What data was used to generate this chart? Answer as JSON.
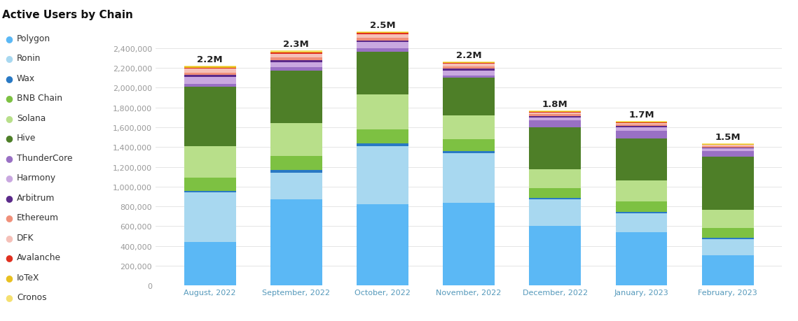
{
  "title": "Active Users by Chain",
  "months": [
    "August, 2022",
    "September, 2022",
    "October, 2022",
    "November, 2022",
    "December, 2022",
    "January, 2023",
    "February, 2023"
  ],
  "totals_labels": [
    "2.2M",
    "2.3M",
    "2.5M",
    "2.2M",
    "1.8M",
    "1.7M",
    "1.5M"
  ],
  "chains": [
    "Polygon",
    "Ronin",
    "Wax",
    "BNB Chain",
    "Solana",
    "Hive",
    "ThunderCore",
    "Harmony",
    "Arbitrum",
    "Ethereum",
    "DFK",
    "Avalanche",
    "IoTeX",
    "Cronos"
  ],
  "colors": {
    "Polygon": "#5BB8F5",
    "Ronin": "#A8D8F0",
    "Wax": "#2979C4",
    "BNB Chain": "#7DC142",
    "Solana": "#B8DF8A",
    "Hive": "#4E7F28",
    "ThunderCore": "#9970C4",
    "Harmony": "#C9A8E0",
    "Arbitrum": "#5B2A8A",
    "Ethereum": "#F0907A",
    "DFK": "#F5C0B8",
    "Avalanche": "#E03020",
    "IoTeX": "#E8C020",
    "Cronos": "#F5E070"
  },
  "data": {
    "Polygon": [
      440000,
      870000,
      820000,
      840000,
      600000,
      540000,
      310000
    ],
    "Ronin": [
      500000,
      270000,
      590000,
      500000,
      270000,
      190000,
      160000
    ],
    "Wax": [
      20000,
      30000,
      25000,
      20000,
      18000,
      18000,
      15000
    ],
    "BNB Chain": [
      130000,
      140000,
      140000,
      120000,
      100000,
      105000,
      95000
    ],
    "Solana": [
      320000,
      330000,
      360000,
      240000,
      190000,
      210000,
      185000
    ],
    "Hive": [
      600000,
      530000,
      430000,
      380000,
      420000,
      420000,
      540000
    ],
    "ThunderCore": [
      30000,
      35000,
      35000,
      25000,
      70000,
      80000,
      55000
    ],
    "Harmony": [
      70000,
      55000,
      60000,
      50000,
      32000,
      35000,
      25000
    ],
    "Arbitrum": [
      18000,
      18000,
      18000,
      17000,
      13000,
      13000,
      10000
    ],
    "Ethereum": [
      22000,
      25000,
      25000,
      22000,
      18000,
      18000,
      15000
    ],
    "DFK": [
      40000,
      40000,
      35000,
      25000,
      17000,
      13000,
      10000
    ],
    "Avalanche": [
      13000,
      13000,
      13000,
      10000,
      8000,
      8000,
      6000
    ],
    "IoTeX": [
      9000,
      10000,
      10000,
      8000,
      6000,
      6000,
      5000
    ],
    "Cronos": [
      10000,
      9000,
      9000,
      7000,
      5000,
      5000,
      4000
    ]
  },
  "ylim": [
    0,
    2600000
  ],
  "yticks": [
    0,
    200000,
    400000,
    600000,
    800000,
    1000000,
    1200000,
    1400000,
    1600000,
    1800000,
    2000000,
    2200000,
    2400000
  ],
  "background_color": "#ffffff",
  "grid_color": "#e5e5e5",
  "title_fontsize": 11,
  "tick_fontsize": 8,
  "xtick_color": "#5599BB",
  "ytick_color": "#999999"
}
